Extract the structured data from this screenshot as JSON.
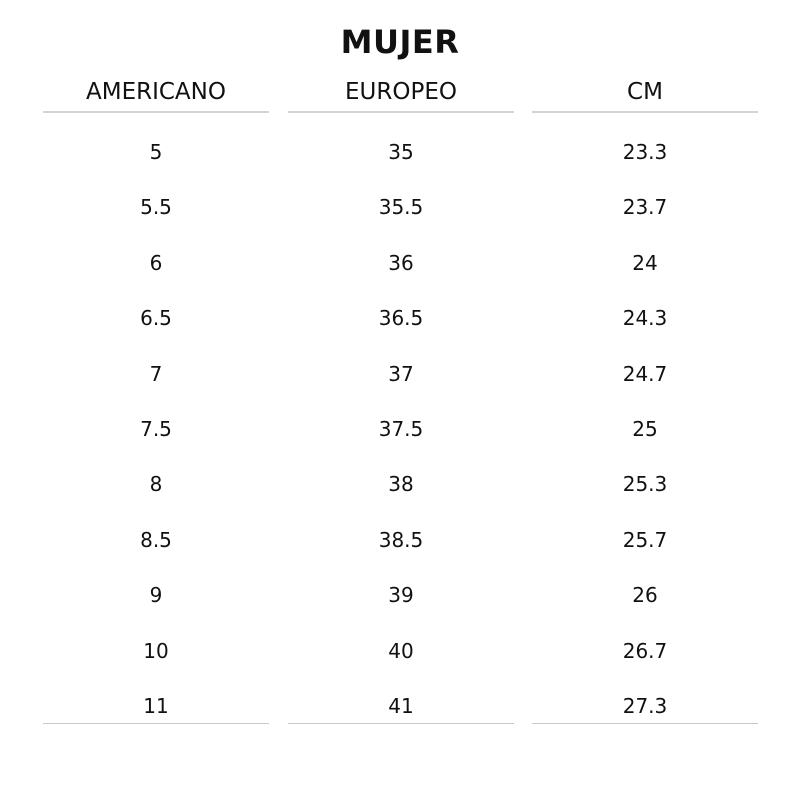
{
  "title": "MUJER",
  "columns": [
    {
      "header": "AMERICANO",
      "values": [
        "5",
        "5.5",
        "6",
        "6.5",
        "7",
        "7.5",
        "8",
        "8.5",
        "9",
        "10",
        "11"
      ]
    },
    {
      "header": "EUROPEO",
      "values": [
        "35",
        "35.5",
        "36",
        "36.5",
        "37",
        "37.5",
        "38",
        "38.5",
        "39",
        "40",
        "41"
      ]
    },
    {
      "header": "CM",
      "values": [
        "23.3",
        "23.7",
        "24",
        "24.3",
        "24.7",
        "25",
        "25.3",
        "25.7",
        "26",
        "26.7",
        "27.3"
      ]
    }
  ]
}
